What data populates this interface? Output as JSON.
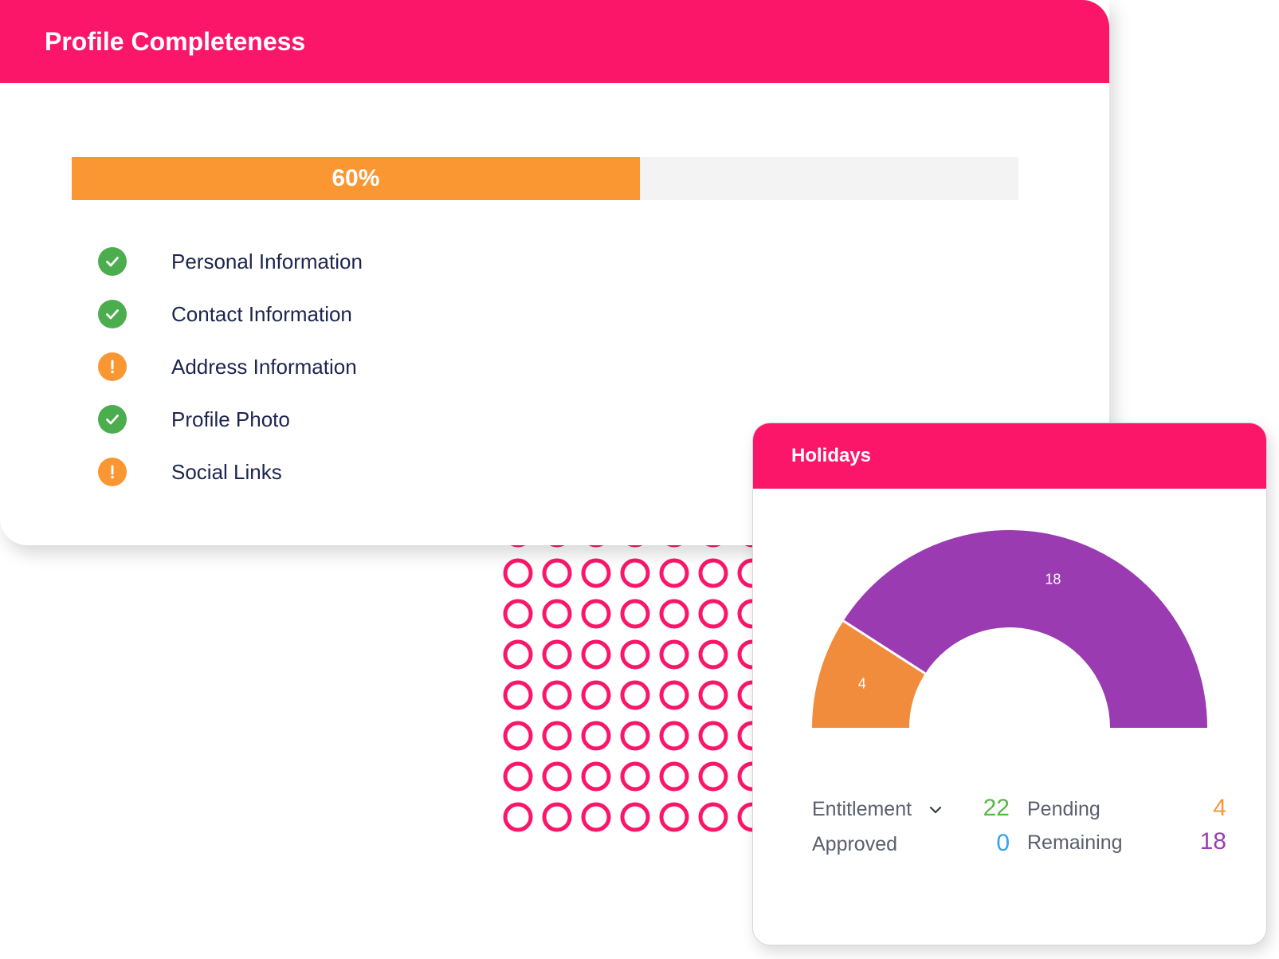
{
  "profile": {
    "title": "Profile Completeness",
    "progress": {
      "percent": 60,
      "label": "60%",
      "fill_color": "#fb9733",
      "track_color": "#f3f3f3"
    },
    "items": [
      {
        "label": "Personal Information",
        "status": "complete",
        "icon": "check-circle-icon"
      },
      {
        "label": "Contact Information",
        "status": "complete",
        "icon": "check-circle-icon"
      },
      {
        "label": "Address Information",
        "status": "warning",
        "icon": "exclamation-circle-icon"
      },
      {
        "label": "Profile Photo",
        "status": "complete",
        "icon": "check-circle-icon"
      },
      {
        "label": "Social Links",
        "status": "warning",
        "icon": "exclamation-circle-icon"
      }
    ]
  },
  "holidays": {
    "title": "Holidays",
    "stats": {
      "entitlement_label": "Entitlement",
      "entitlement_value": "22",
      "pending_label": "Pending",
      "pending_value": "4",
      "approved_label": "Approved",
      "approved_value": "0",
      "remaining_label": "Remaining",
      "remaining_value": "18"
    },
    "colors": {
      "entitlement": "#56b847",
      "pending": "#f6963a",
      "approved": "#2ea3f2",
      "remaining": "#9b3db3"
    }
  },
  "chart_data": {
    "type": "pie",
    "shape": "semi-donut",
    "categories": [
      "Pending",
      "Remaining"
    ],
    "values": [
      4,
      18
    ],
    "colors": [
      "#f18c3c",
      "#9a3bb2"
    ],
    "data_labels": [
      "4",
      "18"
    ]
  },
  "brand": {
    "accent": "#fb166a"
  }
}
